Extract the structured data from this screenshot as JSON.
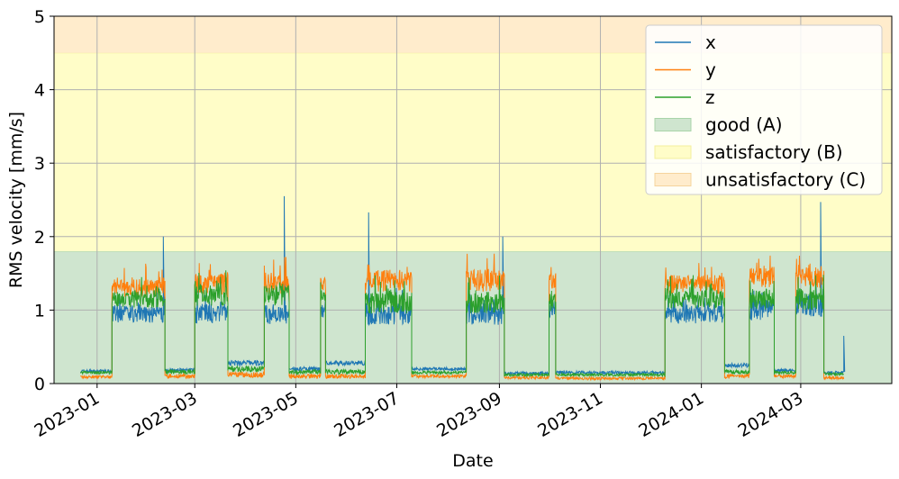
{
  "chart_data": {
    "type": "line",
    "xlabel": "Date",
    "ylabel": "RMS velocity [mm/s]",
    "xlim": [
      "2022-12-06",
      "2024-04-25"
    ],
    "ylim": [
      0,
      5
    ],
    "grid": true,
    "legend_position": "top-right",
    "x_ticks": [
      "2023-01",
      "2023-03",
      "2023-05",
      "2023-07",
      "2023-09",
      "2023-11",
      "2024-01",
      "2024-03"
    ],
    "x_tick_dates": [
      "2023-01-01",
      "2023-03-01",
      "2023-05-01",
      "2023-07-01",
      "2023-09-01",
      "2023-11-01",
      "2024-01-01",
      "2024-03-01"
    ],
    "y_ticks": [
      "0",
      "1",
      "2",
      "3",
      "4",
      "5"
    ],
    "y_tick_values": [
      0,
      1,
      2,
      3,
      4,
      5
    ],
    "zones": [
      {
        "name": "good (A)",
        "from": 0,
        "to": 1.8,
        "color": "#cfe5cf",
        "border": "#a9d4a9"
      },
      {
        "name": "satisfactory (B)",
        "from": 1.8,
        "to": 4.5,
        "color": "#fffdc8",
        "border": "#f3ef9c"
      },
      {
        "name": "unsatisfactory (C)",
        "from": 4.5,
        "to": 5,
        "color": "#ffeccc",
        "border": "#f5d49c"
      }
    ],
    "series_style": [
      {
        "name": "x",
        "color": "#1f77b4"
      },
      {
        "name": "y",
        "color": "#ff7f0e"
      },
      {
        "name": "z",
        "color": "#2ca02c"
      }
    ],
    "segments": [
      {
        "start": "2022-12-22",
        "end": "2023-01-10",
        "x": 0.17,
        "y": 0.09,
        "z": 0.15,
        "noise": 0.02
      },
      {
        "start": "2023-01-10",
        "end": "2023-02-11",
        "x": 0.95,
        "y": 1.3,
        "z": 1.15,
        "noise": 0.12
      },
      {
        "start": "2023-02-11",
        "end": "2023-03-01",
        "x": 0.18,
        "y": 0.1,
        "z": 0.16,
        "noise": 0.03
      },
      {
        "start": "2023-03-01",
        "end": "2023-03-21",
        "x": 0.95,
        "y": 1.35,
        "z": 1.2,
        "noise": 0.14
      },
      {
        "start": "2023-03-21",
        "end": "2023-04-12",
        "x": 0.28,
        "y": 0.12,
        "z": 0.2,
        "noise": 0.04
      },
      {
        "start": "2023-04-12",
        "end": "2023-04-27",
        "x": 0.95,
        "y": 1.35,
        "z": 1.2,
        "noise": 0.14
      },
      {
        "start": "2023-04-27",
        "end": "2023-05-16",
        "x": 0.2,
        "y": 0.1,
        "z": 0.16,
        "noise": 0.03
      },
      {
        "start": "2023-05-16",
        "end": "2023-05-19",
        "x": 1.0,
        "y": 1.35,
        "z": 1.2,
        "noise": 0.1
      },
      {
        "start": "2023-05-19",
        "end": "2023-06-12",
        "x": 0.28,
        "y": 0.1,
        "z": 0.16,
        "noise": 0.03
      },
      {
        "start": "2023-06-12",
        "end": "2023-07-10",
        "x": 0.95,
        "y": 1.4,
        "z": 1.1,
        "noise": 0.15
      },
      {
        "start": "2023-07-10",
        "end": "2023-08-12",
        "x": 0.2,
        "y": 0.1,
        "z": 0.15,
        "noise": 0.02
      },
      {
        "start": "2023-08-12",
        "end": "2023-09-04",
        "x": 0.95,
        "y": 1.4,
        "z": 1.1,
        "noise": 0.15
      },
      {
        "start": "2023-09-04",
        "end": "2023-10-01",
        "x": 0.14,
        "y": 0.08,
        "z": 0.12,
        "noise": 0.02
      },
      {
        "start": "2023-10-01",
        "end": "2023-10-05",
        "x": 1.0,
        "y": 1.4,
        "z": 1.1,
        "noise": 0.12
      },
      {
        "start": "2023-10-05",
        "end": "2023-12-10",
        "x": 0.15,
        "y": 0.07,
        "z": 0.12,
        "noise": 0.02
      },
      {
        "start": "2023-12-10",
        "end": "2024-01-15",
        "x": 0.95,
        "y": 1.35,
        "z": 1.15,
        "noise": 0.13
      },
      {
        "start": "2024-01-15",
        "end": "2024-01-30",
        "x": 0.25,
        "y": 0.1,
        "z": 0.16,
        "noise": 0.03
      },
      {
        "start": "2024-01-30",
        "end": "2024-02-14",
        "x": 1.0,
        "y": 1.45,
        "z": 1.15,
        "noise": 0.14
      },
      {
        "start": "2024-02-14",
        "end": "2024-02-27",
        "x": 0.18,
        "y": 0.1,
        "z": 0.15,
        "noise": 0.02
      },
      {
        "start": "2024-02-27",
        "end": "2024-03-15",
        "x": 1.05,
        "y": 1.45,
        "z": 1.15,
        "noise": 0.15
      },
      {
        "start": "2024-03-15",
        "end": "2024-03-27",
        "x": 0.15,
        "y": 0.08,
        "z": 0.13,
        "noise": 0.02
      }
    ],
    "spikes": [
      {
        "date": "2023-02-10",
        "series": "x",
        "value": 2.0
      },
      {
        "date": "2023-04-24",
        "series": "x",
        "value": 2.55
      },
      {
        "date": "2023-06-14",
        "series": "x",
        "value": 2.33
      },
      {
        "date": "2023-09-03",
        "series": "x",
        "value": 2.0
      },
      {
        "date": "2024-03-13",
        "series": "x",
        "value": 2.47
      },
      {
        "date": "2024-03-27",
        "series": "x",
        "value": 0.65
      }
    ]
  }
}
